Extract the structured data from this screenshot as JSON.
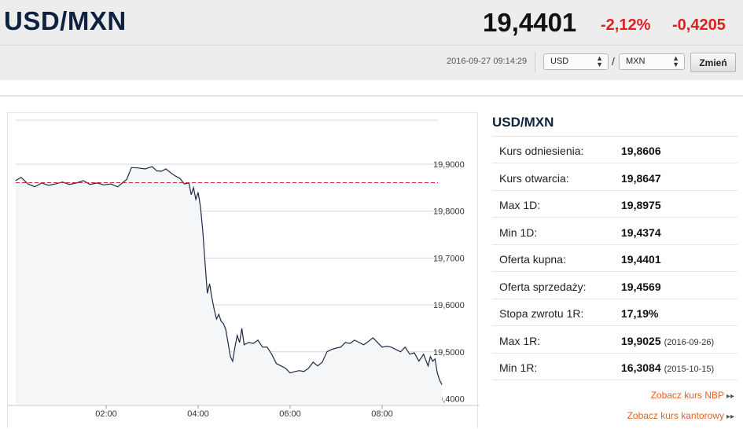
{
  "header": {
    "pair": "USD/MXN",
    "price": "19,4401",
    "change_pct": "-2,12%",
    "change_abs": "-0,4205",
    "timestamp": "2016-09-27 09:14:29",
    "from_currency": "USD",
    "to_currency": "MXN",
    "slash": "/",
    "change_button": "Zmień"
  },
  "panel": {
    "title": "USD/MXN",
    "rows": [
      {
        "label": "Kurs odniesienia:",
        "value": "19,8606",
        "date": ""
      },
      {
        "label": "Kurs otwarcia:",
        "value": "19,8647",
        "date": ""
      },
      {
        "label": "Max 1D:",
        "value": "19,8975",
        "date": ""
      },
      {
        "label": "Min 1D:",
        "value": "19,4374",
        "date": ""
      },
      {
        "label": "Oferta kupna:",
        "value": "19,4401",
        "date": ""
      },
      {
        "label": "Oferta sprzedaży:",
        "value": "19,4569",
        "date": ""
      },
      {
        "label": "Stopa zwrotu 1R:",
        "value": "17,19%",
        "date": ""
      },
      {
        "label": "Max 1R:",
        "value": "19,9025",
        "date": "(2016-09-26)"
      },
      {
        "label": "Min 1R:",
        "value": "16,3084",
        "date": "(2015-10-15)"
      }
    ],
    "link_nbp": "Zobacz kurs NBP",
    "link_kantor": "Zobacz kurs kantorowy"
  },
  "colors": {
    "brand_navy": "#0d2240",
    "negative": "#e02020",
    "link": "#e8601c",
    "line": "#1c2a44",
    "reference": "#d9262c"
  },
  "chart_data": {
    "type": "area",
    "x_unit": "hours",
    "xticks": [
      2,
      4,
      6,
      8
    ],
    "xtick_labels": [
      "02:00",
      "04:00",
      "06:00",
      "08:00"
    ],
    "yticks": [
      19.4,
      19.5,
      19.6,
      19.7,
      19.8,
      19.9
    ],
    "ytick_labels": [
      "19,4000",
      "19,5000",
      "19,6000",
      "19,7000",
      "19,8000",
      "19,9000"
    ],
    "ylim": [
      19.39,
      20.0
    ],
    "xlim": [
      0.03,
      9.33
    ],
    "reference_line": 19.8606,
    "grid": true,
    "x": [
      0.03,
      0.15,
      0.3,
      0.45,
      0.6,
      0.75,
      0.9,
      1.05,
      1.2,
      1.35,
      1.5,
      1.65,
      1.8,
      1.95,
      2.1,
      2.25,
      2.35,
      2.45,
      2.55,
      2.7,
      2.85,
      3.0,
      3.1,
      3.2,
      3.3,
      3.4,
      3.5,
      3.6,
      3.7,
      3.8,
      3.85,
      3.9,
      3.95,
      4.0,
      4.05,
      4.1,
      4.15,
      4.2,
      4.25,
      4.3,
      4.35,
      4.4,
      4.45,
      4.5,
      4.55,
      4.6,
      4.65,
      4.7,
      4.75,
      4.8,
      4.85,
      4.9,
      4.95,
      5.0,
      5.1,
      5.2,
      5.3,
      5.4,
      5.5,
      5.6,
      5.7,
      5.8,
      5.9,
      6.0,
      6.1,
      6.2,
      6.3,
      6.4,
      6.5,
      6.6,
      6.7,
      6.8,
      6.9,
      7.0,
      7.1,
      7.2,
      7.3,
      7.4,
      7.5,
      7.6,
      7.7,
      7.8,
      7.9,
      8.0,
      8.1,
      8.2,
      8.3,
      8.4,
      8.5,
      8.6,
      8.7,
      8.8,
      8.9,
      9.0,
      9.05,
      9.1,
      9.15,
      9.2,
      9.25,
      9.3
    ],
    "y": [
      19.865,
      19.872,
      19.858,
      19.852,
      19.86,
      19.855,
      19.858,
      19.862,
      19.857,
      19.86,
      19.865,
      19.857,
      19.86,
      19.856,
      19.858,
      19.852,
      19.86,
      19.868,
      19.893,
      19.892,
      19.89,
      19.895,
      19.886,
      19.885,
      19.89,
      19.882,
      19.875,
      19.87,
      19.858,
      19.86,
      19.835,
      19.85,
      19.825,
      19.84,
      19.81,
      19.76,
      19.69,
      19.625,
      19.645,
      19.615,
      19.59,
      19.57,
      19.58,
      19.565,
      19.56,
      19.548,
      19.52,
      19.49,
      19.48,
      19.51,
      19.535,
      19.52,
      19.55,
      19.515,
      19.52,
      19.518,
      19.525,
      19.51,
      19.51,
      19.495,
      19.475,
      19.47,
      19.465,
      19.455,
      19.458,
      19.46,
      19.458,
      19.465,
      19.478,
      19.47,
      19.478,
      19.5,
      19.505,
      19.508,
      19.51,
      19.52,
      19.518,
      19.525,
      19.52,
      19.515,
      19.522,
      19.53,
      19.52,
      19.51,
      19.512,
      19.51,
      19.505,
      19.5,
      19.51,
      19.495,
      19.498,
      19.48,
      19.495,
      19.47,
      19.49,
      19.48,
      19.485,
      19.455,
      19.44,
      19.43
    ]
  }
}
